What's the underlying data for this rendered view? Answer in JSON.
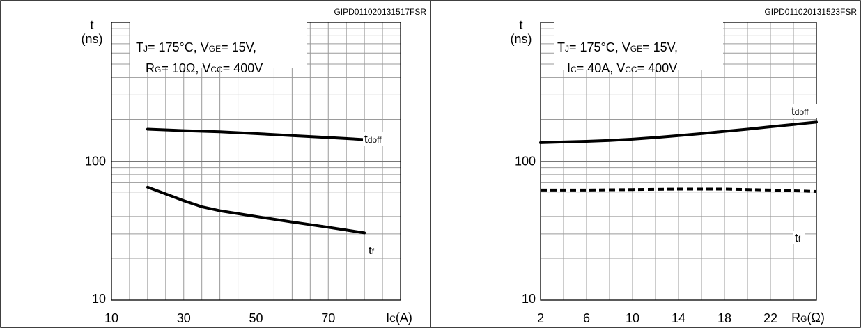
{
  "chart_data": [
    {
      "type": "line",
      "ref_code": "GIPD011020131517FSR",
      "y_unit_line1": "t",
      "y_unit_line2": "(ns)",
      "x_unit_main": "I",
      "x_unit_sub": "C",
      "x_unit_tail": "(A)",
      "y_scale": "log",
      "ylim": [
        10,
        1000
      ],
      "xlim": [
        10,
        90
      ],
      "grid": true,
      "x_ticks": [
        "10",
        "30",
        "50",
        "70"
      ],
      "y_ticks": [
        "100",
        "10"
      ],
      "conditions_line1": [
        {
          "text": "T"
        },
        {
          "text": "J",
          "sub": true
        },
        {
          "text": "= 175°C, V"
        },
        {
          "text": "GE",
          "sub": true
        },
        {
          "text": "= 15V,"
        }
      ],
      "conditions_line2": [
        {
          "text": "R"
        },
        {
          "text": "G",
          "sub": true
        },
        {
          "text": "= 10Ω, V"
        },
        {
          "text": "CC",
          "sub": true
        },
        {
          "text": "= 400V"
        }
      ],
      "series": [
        {
          "name": "t",
          "name_sub": "doff",
          "style": "solid",
          "x": [
            20,
            30,
            40,
            50,
            60,
            70,
            80
          ],
          "y": [
            170,
            166,
            163,
            158,
            153,
            148,
            143
          ]
        },
        {
          "name": "t",
          "name_sub": "f",
          "style": "solid",
          "x": [
            20,
            30,
            35,
            40,
            50,
            60,
            70,
            80
          ],
          "y": [
            65,
            52,
            47,
            44,
            40,
            36.5,
            33.5,
            30.5
          ]
        }
      ]
    },
    {
      "type": "line",
      "ref_code": "GIPD011020131523FSR",
      "y_unit_line1": "t",
      "y_unit_line2": "(ns)",
      "x_unit_main": "R",
      "x_unit_sub": "G",
      "x_unit_tail": "(Ω)",
      "y_scale": "log",
      "ylim": [
        10,
        1000
      ],
      "xlim": [
        2,
        26
      ],
      "grid": true,
      "x_ticks": [
        "2",
        "6",
        "10",
        "14",
        "18",
        "22"
      ],
      "y_ticks": [
        "100",
        "10"
      ],
      "conditions_line1": [
        {
          "text": "T"
        },
        {
          "text": "J",
          "sub": true
        },
        {
          "text": "= 175°C, V"
        },
        {
          "text": "GE",
          "sub": true
        },
        {
          "text": "= 15V,"
        }
      ],
      "conditions_line2": [
        {
          "text": "I"
        },
        {
          "text": "C",
          "sub": true
        },
        {
          "text": "= 40A, V"
        },
        {
          "text": "CC",
          "sub": true
        },
        {
          "text": "= 400V"
        }
      ],
      "series": [
        {
          "name": "t",
          "name_sub": "doff",
          "style": "solid",
          "x": [
            2,
            4,
            6,
            8,
            10,
            12,
            14,
            16,
            18,
            20,
            22,
            24,
            26
          ],
          "y": [
            136,
            137.5,
            139,
            141,
            144,
            148,
            153,
            158,
            164,
            170,
            177,
            184,
            191
          ]
        },
        {
          "name": "t",
          "name_sub": "f",
          "style": "dashed",
          "x": [
            2,
            6,
            10,
            14,
            18,
            22,
            26
          ],
          "y": [
            62,
            62,
            62.5,
            63,
            63,
            62,
            60.5
          ]
        }
      ]
    }
  ]
}
